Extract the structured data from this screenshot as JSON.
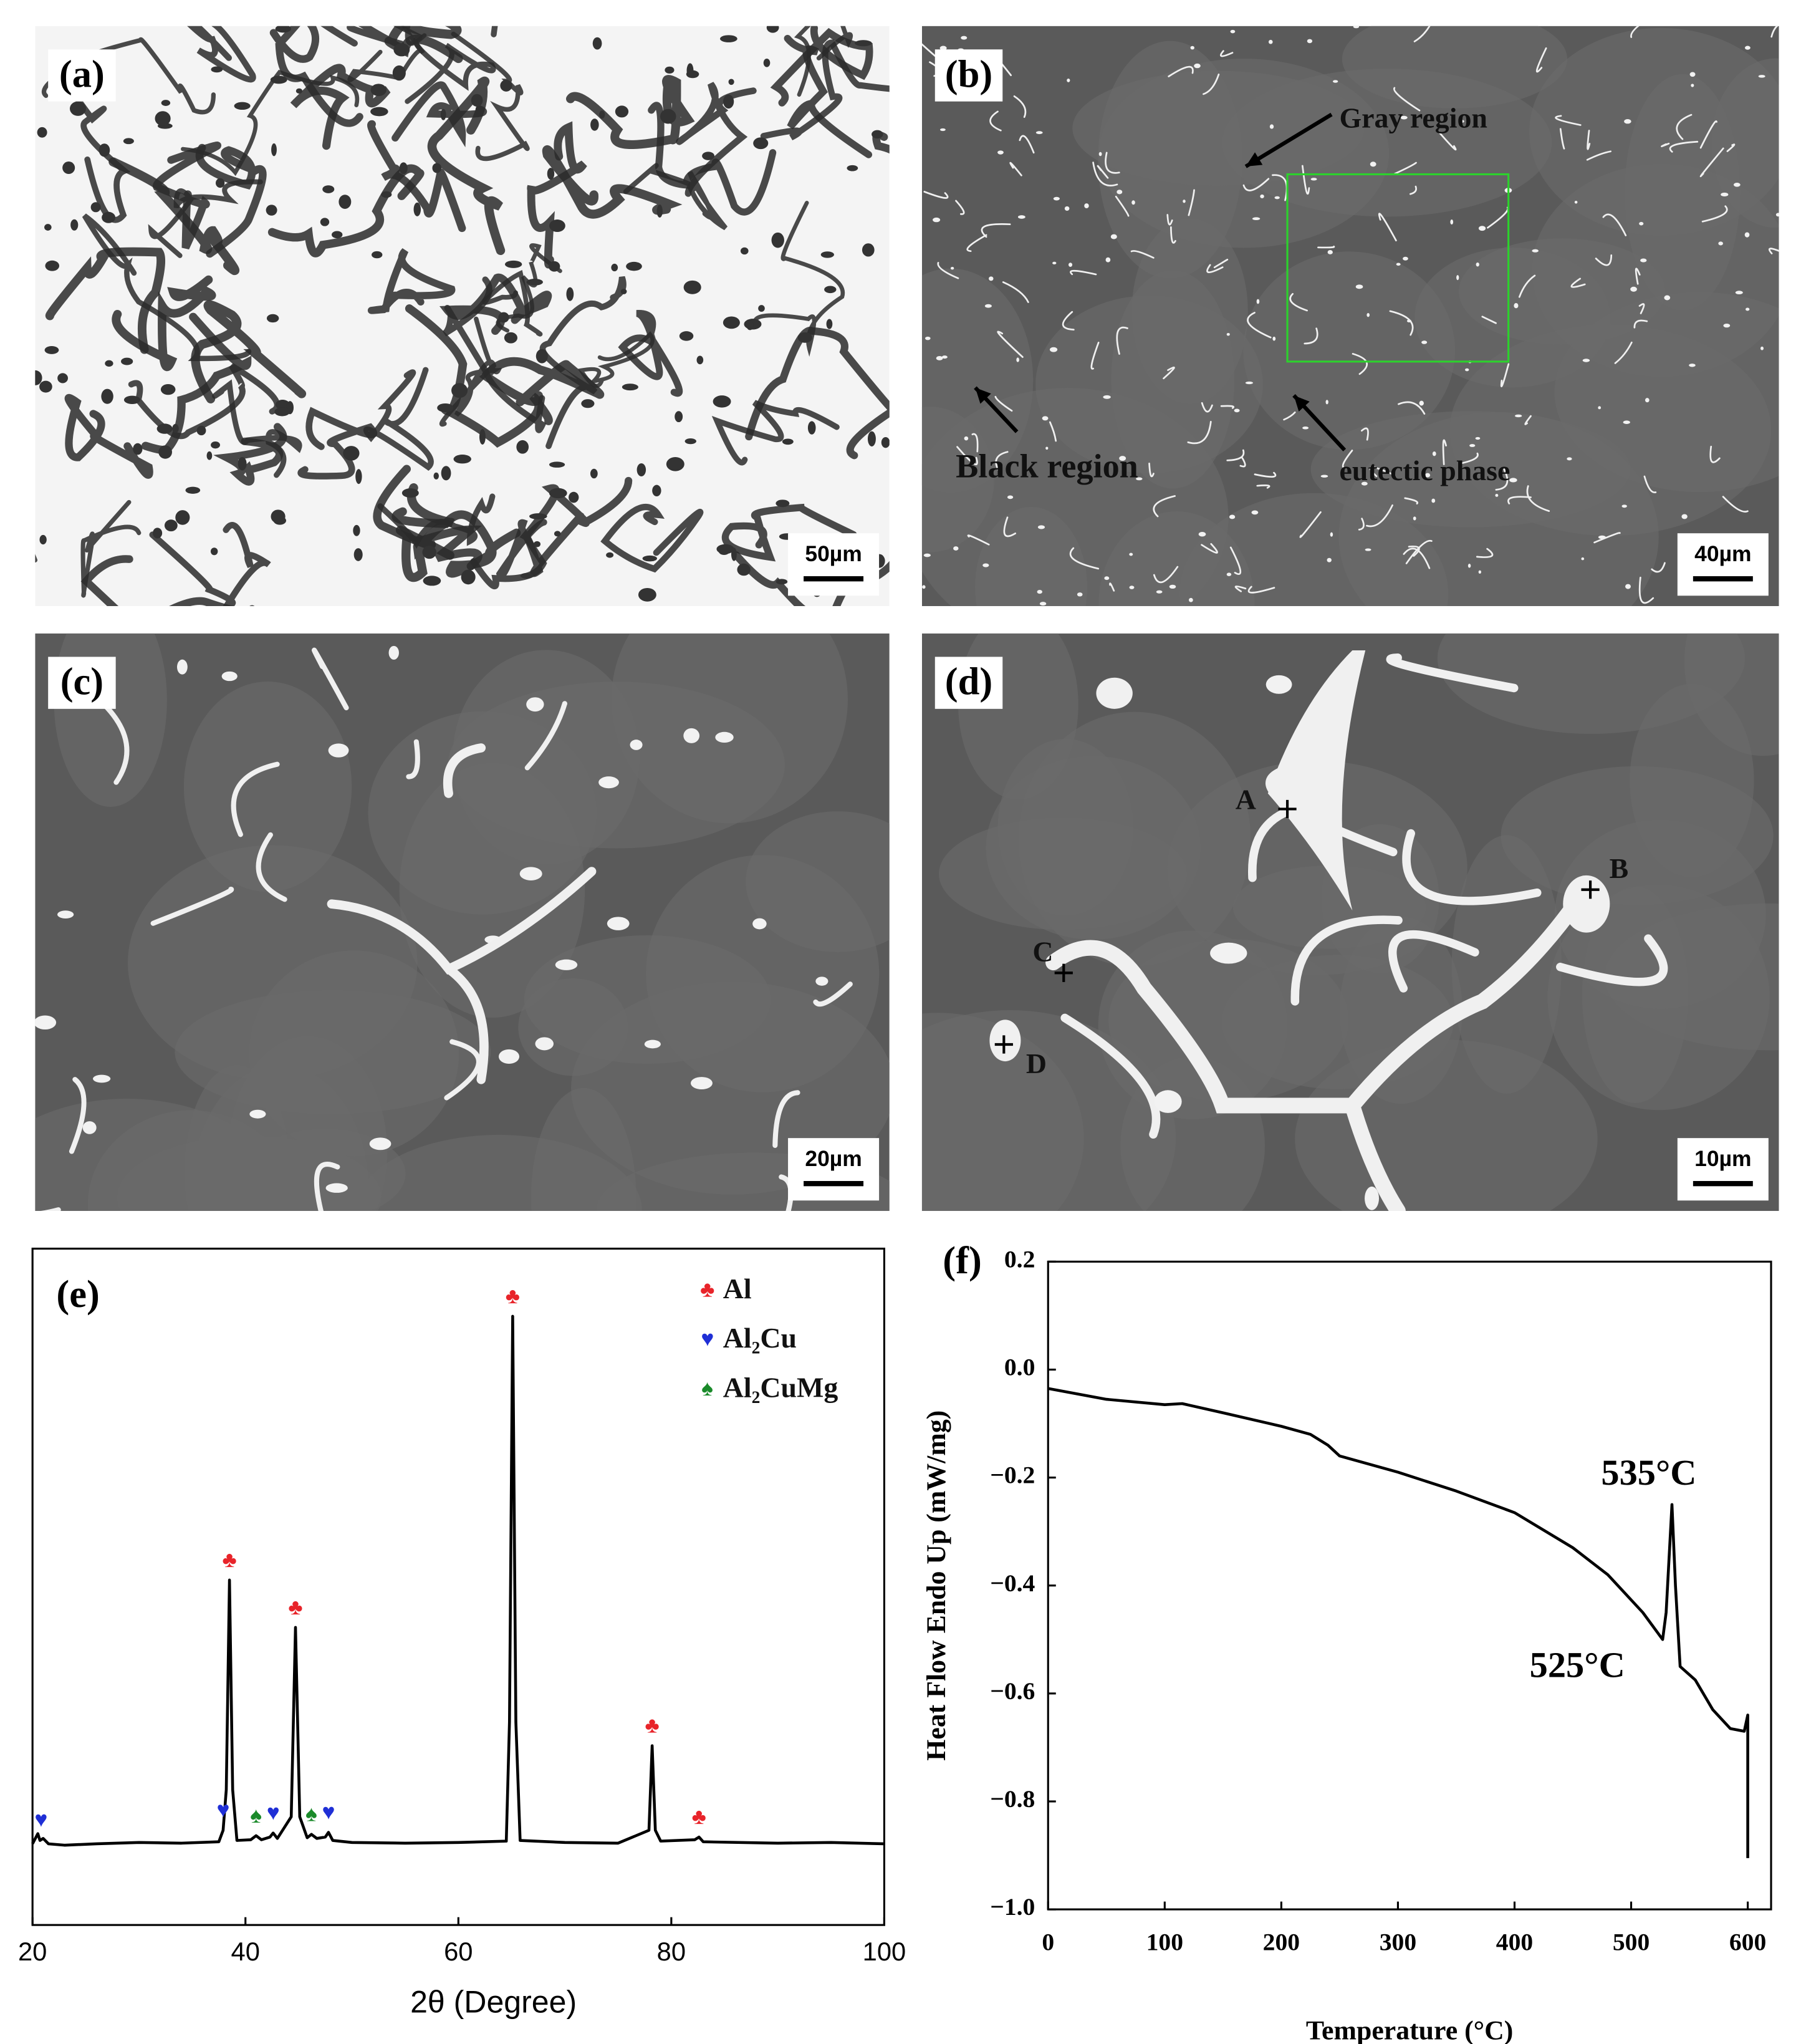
{
  "panels": [
    {
      "label": "(a)",
      "scale_bar": "50µm"
    },
    {
      "label": "(b)",
      "scale_bar": "40µm",
      "annotations": [
        "Gray region",
        "Black region",
        "eutectic phase"
      ]
    },
    {
      "label": "(c)",
      "scale_bar": "20µm"
    },
    {
      "label": "(d)",
      "scale_bar": "10µm",
      "points": [
        "A",
        "B",
        "C",
        "D"
      ]
    }
  ],
  "chart_data": [
    {
      "type": "line",
      "label": "(e)",
      "x_label": "2θ (Degree)",
      "xlim": [
        20,
        100
      ],
      "xticks": [
        20,
        40,
        60,
        80,
        100
      ],
      "ylim": [
        0,
        100
      ],
      "series": [
        {
          "color": "#000000",
          "x": [
            20,
            20.5,
            20.7,
            21.0,
            21.5,
            23,
            26,
            30,
            34,
            37.5,
            37.9,
            38.2,
            38.5,
            38.8,
            39.2,
            40.5,
            41,
            41.5,
            42.3,
            42.6,
            43,
            44.3,
            44.7,
            45.1,
            45.8,
            46.2,
            46.7,
            47.5,
            47.8,
            48.2,
            50,
            55,
            60,
            64.5,
            64.8,
            65.1,
            65.4,
            65.8,
            70,
            75,
            77.9,
            78.2,
            78.5,
            79,
            82.2,
            82.6,
            83,
            90,
            95,
            100
          ],
          "values": [
            12,
            13.5,
            12.5,
            12.8,
            12,
            11.8,
            12,
            12.2,
            12.1,
            12.3,
            14,
            20,
            51,
            20,
            12.5,
            12.6,
            13.2,
            12.6,
            13,
            13.6,
            12.8,
            16,
            44,
            16,
            12.9,
            13.4,
            12.8,
            13,
            13.7,
            12.5,
            12.2,
            12.1,
            12.2,
            12.4,
            30,
            90,
            30,
            12.5,
            12.2,
            12.1,
            14,
            26.5,
            14,
            12.4,
            12.6,
            13,
            12.3,
            12.1,
            12.2,
            12
          ]
        }
      ],
      "markers": [
        {
          "name": "Al",
          "symbol": "♣",
          "color": "#e8242a",
          "x": [
            38.5,
            44.7,
            65.1,
            78.2,
            82.6
          ]
        },
        {
          "name": "Al₂Cu",
          "symbol": "♥",
          "color": "#1f2fd6",
          "x": [
            20.8,
            37.9,
            42.6,
            47.8
          ]
        },
        {
          "name": "Al₂CuMg",
          "symbol": "♠",
          "color": "#1a8a2a",
          "x": [
            41,
            46.2
          ]
        }
      ]
    },
    {
      "type": "line",
      "label": "(f)",
      "x_label": "Temperature (°C)",
      "y_label": "Heat Flow Endo Up (mW/mg)",
      "xlim": [
        0,
        620
      ],
      "xticks": [
        0,
        100,
        200,
        300,
        400,
        500,
        600
      ],
      "ylim": [
        -1.0,
        0.2
      ],
      "yticks": [
        {
          "value": -1.0,
          "label": "−1.0"
        },
        {
          "value": -0.8,
          "label": "−0.8"
        },
        {
          "value": -0.6,
          "label": "−0.6"
        },
        {
          "value": -0.4,
          "label": "−0.4"
        },
        {
          "value": -0.2,
          "label": "−0.2"
        },
        {
          "value": 0,
          "label": "0.0"
        },
        0.2
      ],
      "series": [
        {
          "color": "#000000",
          "x": [
            0,
            50,
            100,
            115,
            150,
            200,
            225,
            240,
            250,
            300,
            350,
            400,
            450,
            480,
            510,
            527,
            530,
            535,
            538,
            542,
            555,
            570,
            585,
            597,
            600,
            600
          ],
          "values": [
            -0.035,
            -0.055,
            -0.065,
            -0.063,
            -0.08,
            -0.105,
            -0.12,
            -0.14,
            -0.16,
            -0.19,
            -0.225,
            -0.265,
            -0.33,
            -0.38,
            -0.45,
            -0.5,
            -0.45,
            -0.25,
            -0.4,
            -0.55,
            -0.575,
            -0.63,
            -0.665,
            -0.67,
            -0.64,
            -0.905
          ]
        }
      ],
      "annotations": [
        "535°C",
        "525°C"
      ]
    }
  ]
}
